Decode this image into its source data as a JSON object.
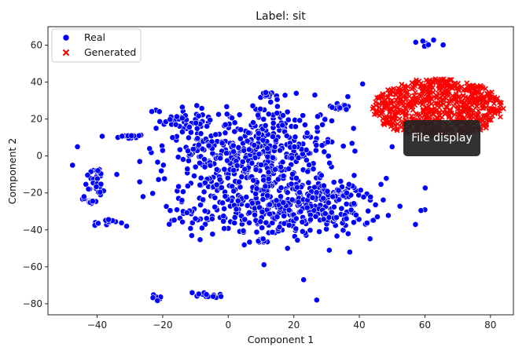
{
  "tooltip": "File display",
  "chart_data": {
    "type": "scatter",
    "title": "Label: sit",
    "xlabel": "Component 1",
    "ylabel": "Component 2",
    "xlim": [
      -55,
      87
    ],
    "ylim": [
      -86,
      70
    ],
    "xticks": [
      -40,
      -20,
      0,
      20,
      40,
      60,
      80
    ],
    "yticks": [
      -80,
      -60,
      -40,
      -20,
      0,
      20,
      40,
      60
    ],
    "grid": false,
    "legend": "top-left",
    "series": [
      {
        "name": "Real",
        "marker": "circle",
        "color": "#0000ff",
        "clusters": [
          {
            "cx": 60,
            "cy": 61,
            "sx": 2,
            "sy": 1.2,
            "n": 10
          },
          {
            "cx": 10,
            "cy": 5,
            "sx": 12,
            "sy": 12,
            "n": 350
          },
          {
            "cx": 18,
            "cy": -28,
            "sx": 14,
            "sy": 8,
            "n": 380
          },
          {
            "cx": 2,
            "cy": -8,
            "sx": 10,
            "sy": 10,
            "n": 90
          },
          {
            "cx": -14,
            "cy": 20,
            "sx": 5,
            "sy": 4,
            "n": 40
          },
          {
            "cx": 13,
            "cy": 33,
            "sx": 1.5,
            "sy": 1.2,
            "n": 12
          },
          {
            "cx": 34,
            "cy": 27,
            "sx": 1.5,
            "sy": 1.5,
            "n": 12
          },
          {
            "cx": -30,
            "cy": 11,
            "sx": 1.5,
            "sy": 1,
            "n": 12
          },
          {
            "cx": -40,
            "cy": -10,
            "sx": 1.5,
            "sy": 2,
            "n": 15
          },
          {
            "cx": -40,
            "cy": -18,
            "sx": 1.5,
            "sy": 2,
            "n": 15
          },
          {
            "cx": -42,
            "cy": -24,
            "sx": 1.5,
            "sy": 1,
            "n": 12
          },
          {
            "cx": -37,
            "cy": -36,
            "sx": 2,
            "sy": 1,
            "n": 12
          },
          {
            "cx": 33,
            "cy": -34,
            "sx": 3,
            "sy": 2,
            "n": 18
          },
          {
            "cx": 34,
            "cy": -22,
            "sx": 3,
            "sy": 2,
            "n": 18
          },
          {
            "cx": -22,
            "cy": -76.5,
            "sx": 1,
            "sy": 1,
            "n": 12
          },
          {
            "cx": -5,
            "cy": -75.5,
            "sx": 2,
            "sy": 0.7,
            "n": 12
          },
          {
            "cx": 10,
            "cy": -46,
            "sx": 1.5,
            "sy": 1,
            "n": 10
          },
          {
            "cx": -10,
            "cy": -15,
            "sx": 8,
            "sy": 15,
            "n": 35
          }
        ],
        "points": [
          [
            -47.5,
            -5
          ],
          [
            -46,
            5
          ],
          [
            -31,
            -38
          ],
          [
            -27,
            -14
          ],
          [
            -26,
            -22
          ],
          [
            -18,
            -37
          ],
          [
            -7,
            -37
          ],
          [
            -8,
            -39
          ],
          [
            23,
            -67
          ],
          [
            27,
            -78
          ],
          [
            41,
            39
          ],
          [
            50,
            5
          ],
          [
            39,
            -32
          ],
          [
            -11,
            -74
          ],
          [
            -24,
            4
          ],
          [
            -20,
            3
          ],
          [
            -27,
            -3
          ],
          [
            -17,
            10
          ],
          [
            -22,
            15
          ],
          [
            -16,
            17
          ],
          [
            -34,
            -10
          ],
          [
            -44,
            -22
          ],
          [
            -21,
            24
          ],
          [
            -14,
            13
          ],
          [
            -9,
            6
          ]
        ]
      },
      {
        "name": "Generated",
        "marker": "x",
        "color": "#ff0000",
        "clusters": [
          {
            "cx": 64,
            "cy": 26,
            "sx": 10,
            "sy": 9,
            "n": 700,
            "bounded": true,
            "rx": 20,
            "ry": 16
          }
        ]
      }
    ]
  }
}
